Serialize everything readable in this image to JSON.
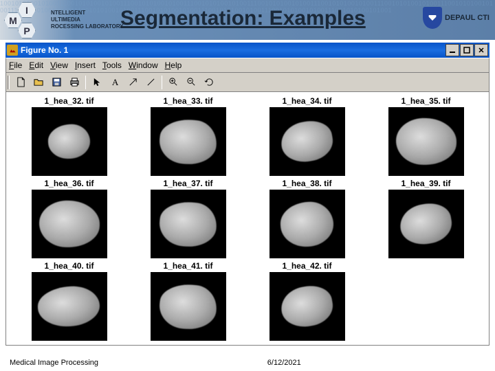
{
  "header": {
    "logo_letters": [
      "I",
      "M",
      "P"
    ],
    "logo_lines": [
      "NTELLIGENT",
      "ULTIMEDIA",
      "ROCESSING LABORATORY"
    ],
    "title": "Segmentation: Examples",
    "university": "DEPAUL CTI",
    "binary_bg": "100101010010100111001010100101001110010101001010011100101010010100111001010100101001110010101001010011100101010010100111001010100101001110010101001010011100101010010100111001010100101001110010101001010011100101010010100111001010100101001"
  },
  "window": {
    "title": "Figure No. 1",
    "menu": [
      "File",
      "Edit",
      "View",
      "Insert",
      "Tools",
      "Window",
      "Help"
    ],
    "toolbar_icons": [
      "new",
      "open",
      "save",
      "print",
      "arrow",
      "text-A",
      "arrow-ne",
      "line",
      "zoom-in",
      "zoom-out",
      "rotate"
    ]
  },
  "images": [
    {
      "label": "1_hea_32. tif",
      "variant": "small"
    },
    {
      "label": "1_hea_33. tif",
      "variant": "v2"
    },
    {
      "label": "1_hea_34. tif",
      "variant": "v3"
    },
    {
      "label": "1_hea_35. tif",
      "variant": "v4"
    },
    {
      "label": "1_hea_36. tif",
      "variant": "v4"
    },
    {
      "label": "1_hea_37. tif",
      "variant": "v2"
    },
    {
      "label": "1_hea_38. tif",
      "variant": ""
    },
    {
      "label": "1_hea_39. tif",
      "variant": "v3"
    },
    {
      "label": "1_hea_40. tif",
      "variant": "wide"
    },
    {
      "label": "1_hea_41. tif",
      "variant": "v2"
    },
    {
      "label": "1_hea_42. tif",
      "variant": "v3"
    }
  ],
  "footer": {
    "left": "Medical Image Processing",
    "date": "6/12/2021"
  },
  "colors": {
    "header_grad_start": "#d0d8e0",
    "header_grad_end": "#5c7fa8",
    "titlebar_blue": "#0854c8",
    "win_gray": "#d4d0c8",
    "shield_blue": "#2648a0"
  }
}
